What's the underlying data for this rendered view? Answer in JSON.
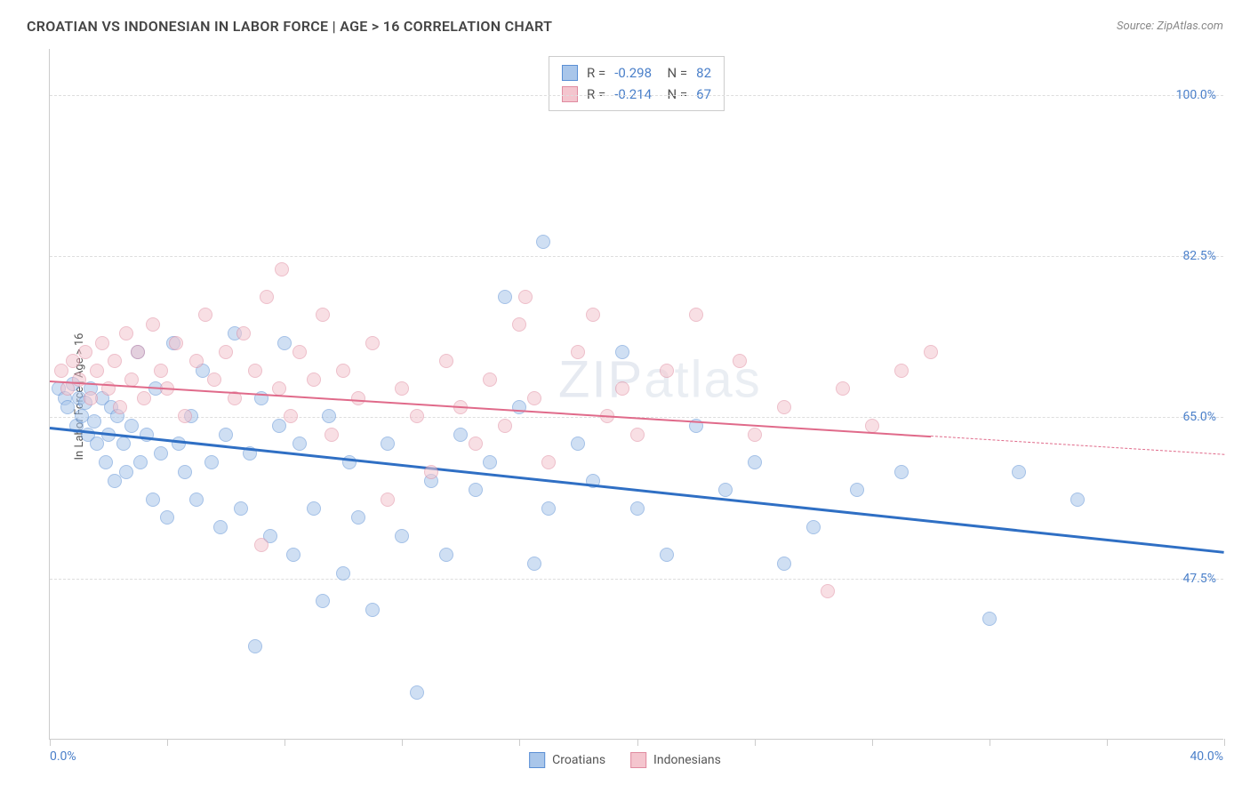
{
  "title": "CROATIAN VS INDONESIAN IN LABOR FORCE | AGE > 16 CORRELATION CHART",
  "source": "Source: ZipAtlas.com",
  "y_axis_label": "In Labor Force | Age > 16",
  "watermark": {
    "bold": "ZIP",
    "thin": "atlas"
  },
  "chart": {
    "type": "scatter",
    "background_color": "#ffffff",
    "grid_color": "#dddddd",
    "axis_color": "#cccccc",
    "xlim": [
      0,
      40
    ],
    "ylim": [
      30,
      105
    ],
    "x_min_label": "0.0%",
    "x_max_label": "40.0%",
    "x_label_color": "#4a7fc9",
    "y_ticks": [
      {
        "value": 47.5,
        "label": "47.5%"
      },
      {
        "value": 65.0,
        "label": "65.0%"
      },
      {
        "value": 82.5,
        "label": "82.5%"
      },
      {
        "value": 100.0,
        "label": "100.0%"
      }
    ],
    "y_tick_color": "#4a7fc9",
    "x_tick_positions": [
      0,
      4,
      8,
      12,
      16,
      20,
      24,
      28,
      32,
      36,
      40
    ],
    "marker_radius": 8,
    "marker_opacity": 0.55,
    "series": [
      {
        "name": "Croatians",
        "fill_color": "#a9c6ea",
        "stroke_color": "#5b8fd5",
        "stats": {
          "R": "-0.298",
          "N": "82"
        },
        "trend": {
          "color": "#2f6fc4",
          "width": 2.5,
          "x1": 0,
          "y1": 64,
          "x2": 40,
          "y2": 50.5,
          "solid_until_x": 40
        },
        "points": [
          [
            0.3,
            68
          ],
          [
            0.5,
            67
          ],
          [
            0.6,
            66
          ],
          [
            0.8,
            68.5
          ],
          [
            0.9,
            64
          ],
          [
            1.0,
            67
          ],
          [
            1.1,
            65
          ],
          [
            1.2,
            66.5
          ],
          [
            1.3,
            63
          ],
          [
            1.4,
            68
          ],
          [
            1.5,
            64.5
          ],
          [
            1.6,
            62
          ],
          [
            1.8,
            67
          ],
          [
            1.9,
            60
          ],
          [
            2.0,
            63
          ],
          [
            2.1,
            66
          ],
          [
            2.2,
            58
          ],
          [
            2.3,
            65
          ],
          [
            2.5,
            62
          ],
          [
            2.6,
            59
          ],
          [
            2.8,
            64
          ],
          [
            3.0,
            72
          ],
          [
            3.1,
            60
          ],
          [
            3.3,
            63
          ],
          [
            3.5,
            56
          ],
          [
            3.6,
            68
          ],
          [
            3.8,
            61
          ],
          [
            4.0,
            54
          ],
          [
            4.2,
            73
          ],
          [
            4.4,
            62
          ],
          [
            4.6,
            59
          ],
          [
            4.8,
            65
          ],
          [
            5.0,
            56
          ],
          [
            5.2,
            70
          ],
          [
            5.5,
            60
          ],
          [
            5.8,
            53
          ],
          [
            6.0,
            63
          ],
          [
            6.3,
            74
          ],
          [
            6.5,
            55
          ],
          [
            6.8,
            61
          ],
          [
            7.0,
            40
          ],
          [
            7.2,
            67
          ],
          [
            7.5,
            52
          ],
          [
            7.8,
            64
          ],
          [
            8.0,
            73
          ],
          [
            8.3,
            50
          ],
          [
            8.5,
            62
          ],
          [
            9.0,
            55
          ],
          [
            9.3,
            45
          ],
          [
            9.5,
            65
          ],
          [
            10.0,
            48
          ],
          [
            10.2,
            60
          ],
          [
            10.5,
            54
          ],
          [
            11.0,
            44
          ],
          [
            11.5,
            62
          ],
          [
            12.0,
            52
          ],
          [
            12.5,
            35
          ],
          [
            13.0,
            58
          ],
          [
            13.5,
            50
          ],
          [
            14.0,
            63
          ],
          [
            14.5,
            57
          ],
          [
            15.0,
            60
          ],
          [
            15.5,
            78
          ],
          [
            16.0,
            66
          ],
          [
            16.5,
            49
          ],
          [
            16.8,
            84
          ],
          [
            17.0,
            55
          ],
          [
            18.0,
            62
          ],
          [
            18.5,
            58
          ],
          [
            19.5,
            72
          ],
          [
            20.0,
            55
          ],
          [
            21.0,
            50
          ],
          [
            22.0,
            64
          ],
          [
            23.0,
            57
          ],
          [
            24.0,
            60
          ],
          [
            25.0,
            49
          ],
          [
            26.0,
            53
          ],
          [
            27.5,
            57
          ],
          [
            29.0,
            59
          ],
          [
            32.0,
            43
          ],
          [
            33.0,
            59
          ],
          [
            35.0,
            56
          ]
        ]
      },
      {
        "name": "Indonesians",
        "fill_color": "#f4c5ce",
        "stroke_color": "#e08ba0",
        "stats": {
          "R": "-0.214",
          "N": "67"
        },
        "trend": {
          "color": "#e06a8a",
          "width": 2,
          "x1": 0,
          "y1": 69,
          "x2": 40,
          "y2": 61,
          "solid_until_x": 30
        },
        "points": [
          [
            0.4,
            70
          ],
          [
            0.6,
            68
          ],
          [
            0.8,
            71
          ],
          [
            1.0,
            69
          ],
          [
            1.2,
            72
          ],
          [
            1.4,
            67
          ],
          [
            1.6,
            70
          ],
          [
            1.8,
            73
          ],
          [
            2.0,
            68
          ],
          [
            2.2,
            71
          ],
          [
            2.4,
            66
          ],
          [
            2.6,
            74
          ],
          [
            2.8,
            69
          ],
          [
            3.0,
            72
          ],
          [
            3.2,
            67
          ],
          [
            3.5,
            75
          ],
          [
            3.8,
            70
          ],
          [
            4.0,
            68
          ],
          [
            4.3,
            73
          ],
          [
            4.6,
            65
          ],
          [
            5.0,
            71
          ],
          [
            5.3,
            76
          ],
          [
            5.6,
            69
          ],
          [
            6.0,
            72
          ],
          [
            6.3,
            67
          ],
          [
            6.6,
            74
          ],
          [
            7.0,
            70
          ],
          [
            7.2,
            51
          ],
          [
            7.4,
            78
          ],
          [
            7.8,
            68
          ],
          [
            7.9,
            81
          ],
          [
            8.2,
            65
          ],
          [
            8.5,
            72
          ],
          [
            9.0,
            69
          ],
          [
            9.3,
            76
          ],
          [
            9.6,
            63
          ],
          [
            10.0,
            70
          ],
          [
            10.5,
            67
          ],
          [
            11.0,
            73
          ],
          [
            11.5,
            56
          ],
          [
            12.0,
            68
          ],
          [
            12.5,
            65
          ],
          [
            13.0,
            59
          ],
          [
            13.5,
            71
          ],
          [
            14.0,
            66
          ],
          [
            14.5,
            62
          ],
          [
            15.0,
            69
          ],
          [
            15.5,
            64
          ],
          [
            16.0,
            75
          ],
          [
            16.2,
            78
          ],
          [
            16.5,
            67
          ],
          [
            17.0,
            60
          ],
          [
            18.0,
            72
          ],
          [
            18.5,
            76
          ],
          [
            19.0,
            65
          ],
          [
            19.5,
            68
          ],
          [
            20.0,
            63
          ],
          [
            21.0,
            70
          ],
          [
            22.0,
            76
          ],
          [
            23.5,
            71
          ],
          [
            24.0,
            63
          ],
          [
            25.0,
            66
          ],
          [
            26.5,
            46
          ],
          [
            27.0,
            68
          ],
          [
            28.0,
            64
          ],
          [
            29.0,
            70
          ],
          [
            30.0,
            72
          ]
        ]
      }
    ]
  },
  "stats_box": {
    "border_color": "#cccccc",
    "text_color": "#555555",
    "value_color": "#4a7fc9"
  },
  "bottom_legend": [
    {
      "label": "Croatians",
      "fill": "#a9c6ea",
      "stroke": "#5b8fd5"
    },
    {
      "label": "Indonesians",
      "fill": "#f4c5ce",
      "stroke": "#e08ba0"
    }
  ]
}
